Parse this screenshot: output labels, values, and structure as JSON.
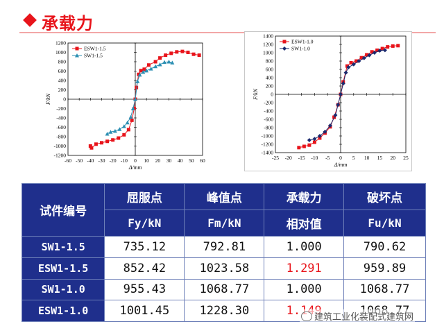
{
  "title": "承载力",
  "watermark": "建筑工业化装配式建筑网",
  "colors": {
    "title_red": "#e8141b",
    "header_blue": "#1f2f8c",
    "series_red": "#e8141b",
    "series_cyan": "#2c8fb3",
    "series_navy": "#1b2a6e"
  },
  "table": {
    "headers": [
      {
        "line1": "试件编号",
        "line2": ""
      },
      {
        "line1": "屈服点",
        "line2": "Fy/kN"
      },
      {
        "line1": "峰值点",
        "line2": "Fm/kN"
      },
      {
        "line1": "承载力",
        "line2": "相对值"
      },
      {
        "line1": "破坏点",
        "line2": "Fu/kN"
      }
    ],
    "rows": [
      {
        "id": "SW1-1.5",
        "fy": "735.12",
        "fm": "792.81",
        "rel": "1.000",
        "fu": "790.62"
      },
      {
        "id": "ESW1-1.5",
        "fy": "852.42",
        "fm": "1023.58",
        "rel": "1.291",
        "fu": "959.89"
      },
      {
        "id": "SW1-1.0",
        "fy": "955.43",
        "fm": "1068.77",
        "rel": "1.000",
        "fu": "1068.77"
      },
      {
        "id": "ESW1-1.0",
        "fy": "1001.45",
        "fm": "1228.30",
        "rel": "1.149",
        "fu": "1068.77"
      }
    ]
  },
  "chart_data": [
    {
      "type": "line",
      "xlabel": "Δ/mm",
      "ylabel": "F/kN",
      "xlim": [
        -60,
        60
      ],
      "ylim": [
        -1200,
        1200
      ],
      "xticks": [
        -60,
        -50,
        -40,
        -30,
        -20,
        -10,
        0,
        10,
        20,
        30,
        40,
        50,
        60
      ],
      "yticks": [
        -1200,
        -1000,
        -800,
        -600,
        -400,
        -200,
        0,
        200,
        400,
        600,
        800,
        1000,
        1200
      ],
      "legend_position": "top-left",
      "series": [
        {
          "name": "ESW1-1.5",
          "color": "#e8141b",
          "marker": "square",
          "x": [
            -40,
            -39,
            -35,
            -30,
            -25,
            -20,
            -15,
            -10,
            -6,
            -3,
            -1,
            0,
            1,
            3,
            5,
            8,
            12,
            18,
            22,
            27,
            32,
            37,
            42,
            47,
            52,
            57
          ],
          "y": [
            -1000,
            -1040,
            -960,
            -930,
            -900,
            -870,
            -830,
            -760,
            -650,
            -450,
            -200,
            0,
            250,
            530,
            610,
            640,
            730,
            800,
            880,
            940,
            980,
            1010,
            1020,
            1000,
            960,
            940
          ]
        },
        {
          "name": "SW1-1.5",
          "color": "#2c8fb3",
          "marker": "triangle",
          "x": [
            -25,
            -22,
            -18,
            -14,
            -10,
            -7,
            -4,
            -2,
            0,
            2,
            4,
            7,
            10,
            14,
            18,
            22,
            26,
            30,
            33
          ],
          "y": [
            -740,
            -700,
            -680,
            -640,
            -580,
            -500,
            -380,
            -200,
            0,
            380,
            520,
            580,
            610,
            650,
            700,
            740,
            790,
            800,
            780
          ]
        }
      ]
    },
    {
      "type": "line",
      "xlabel": "Δ/mm",
      "ylabel": "F/kN",
      "xlim": [
        -25,
        25
      ],
      "ylim": [
        -1400,
        1400
      ],
      "xticks": [
        -25,
        -20,
        -15,
        -10,
        -5,
        0,
        5,
        10,
        15,
        20,
        25
      ],
      "yticks": [
        -1400,
        -1200,
        -1000,
        -800,
        -600,
        -400,
        -200,
        0,
        200,
        400,
        600,
        800,
        1000,
        1200,
        1400
      ],
      "legend_position": "top-left",
      "series": [
        {
          "name": "ESW1-1.0",
          "color": "#e8141b",
          "marker": "square",
          "x": [
            -16,
            -14,
            -12,
            -10,
            -8,
            -6,
            -4,
            -2.5,
            -1,
            0,
            1,
            2.5,
            4,
            6,
            8,
            10,
            12,
            14,
            16,
            18,
            20,
            22
          ],
          "y": [
            -1280,
            -1250,
            -1220,
            -1150,
            -1050,
            -930,
            -780,
            -550,
            -250,
            0,
            300,
            680,
            760,
            800,
            880,
            950,
            1020,
            1060,
            1100,
            1140,
            1160,
            1170
          ]
        },
        {
          "name": "SW1-1.0",
          "color": "#1b2a6e",
          "marker": "diamond",
          "x": [
            -12,
            -10,
            -8,
            -6,
            -4,
            -2,
            -1,
            0,
            1,
            2,
            3,
            5,
            7,
            9,
            11,
            13,
            15,
            17
          ],
          "y": [
            -1100,
            -1070,
            -1000,
            -900,
            -750,
            -500,
            -250,
            0,
            260,
            520,
            650,
            720,
            800,
            870,
            940,
            1000,
            1050,
            1060
          ]
        }
      ]
    }
  ]
}
